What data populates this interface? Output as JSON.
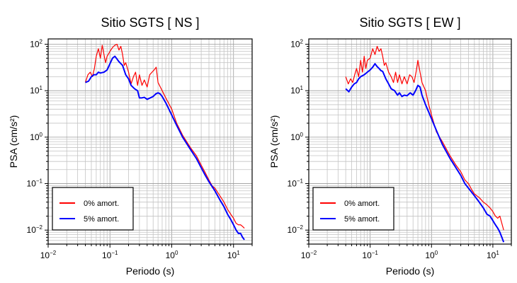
{
  "chart_data": [
    {
      "type": "line",
      "title": "Sitio SGTS [ NS ]",
      "xlabel": "Periodo (s)",
      "ylabel": "PSA (cm/s²)",
      "xscale": "log",
      "yscale": "log",
      "xlim": [
        0.01,
        20
      ],
      "ylim": [
        0.005,
        130
      ],
      "grid": true,
      "legend_position": "bottom-left",
      "x_ticks": [
        {
          "base": "10",
          "exp": "−2",
          "value": 0.01
        },
        {
          "base": "10",
          "exp": "−1",
          "value": 0.1
        },
        {
          "base": "10",
          "exp": "0",
          "value": 1
        },
        {
          "base": "10",
          "exp": "1",
          "value": 10
        }
      ],
      "y_ticks": [
        {
          "base": "10",
          "exp": "−2",
          "value": 0.01
        },
        {
          "base": "10",
          "exp": "−1",
          "value": 0.1
        },
        {
          "base": "10",
          "exp": "0",
          "value": 1
        },
        {
          "base": "10",
          "exp": "1",
          "value": 10
        },
        {
          "base": "10",
          "exp": "2",
          "value": 100
        }
      ],
      "series": [
        {
          "name": "0% amort.",
          "color": "#ff0000",
          "points": [
            [
              0.04,
              15
            ],
            [
              0.044,
              22
            ],
            [
              0.048,
              25
            ],
            [
              0.052,
              20
            ],
            [
              0.056,
              30
            ],
            [
              0.06,
              55
            ],
            [
              0.065,
              80
            ],
            [
              0.07,
              50
            ],
            [
              0.075,
              95
            ],
            [
              0.08,
              60
            ],
            [
              0.085,
              40
            ],
            [
              0.09,
              55
            ],
            [
              0.1,
              70
            ],
            [
              0.11,
              85
            ],
            [
              0.12,
              95
            ],
            [
              0.13,
              100
            ],
            [
              0.14,
              75
            ],
            [
              0.15,
              90
            ],
            [
              0.16,
              60
            ],
            [
              0.17,
              35
            ],
            [
              0.18,
              40
            ],
            [
              0.2,
              25
            ],
            [
              0.22,
              14
            ],
            [
              0.24,
              20
            ],
            [
              0.26,
              25
            ],
            [
              0.28,
              13
            ],
            [
              0.3,
              22
            ],
            [
              0.33,
              13
            ],
            [
              0.36,
              17
            ],
            [
              0.4,
              12
            ],
            [
              0.44,
              22
            ],
            [
              0.48,
              25
            ],
            [
              0.52,
              28
            ],
            [
              0.56,
              32
            ],
            [
              0.6,
              15
            ],
            [
              0.7,
              10
            ],
            [
              0.8,
              7
            ],
            [
              1,
              4
            ],
            [
              1.2,
              2
            ],
            [
              1.5,
              1.1
            ],
            [
              2,
              0.6
            ],
            [
              2.5,
              0.4
            ],
            [
              3,
              0.25
            ],
            [
              3.5,
              0.17
            ],
            [
              4,
              0.12
            ],
            [
              4.5,
              0.09
            ],
            [
              5,
              0.08
            ],
            [
              6,
              0.055
            ],
            [
              7,
              0.04
            ],
            [
              8,
              0.028
            ],
            [
              9,
              0.022
            ],
            [
              10,
              0.018
            ],
            [
              11,
              0.014
            ],
            [
              12,
              0.013
            ],
            [
              13,
              0.013
            ],
            [
              14,
              0.012
            ],
            [
              15,
              0.011
            ]
          ]
        },
        {
          "name": "5% amort.",
          "color": "#0000ff",
          "points": [
            [
              0.04,
              15
            ],
            [
              0.045,
              16
            ],
            [
              0.05,
              20
            ],
            [
              0.055,
              22
            ],
            [
              0.06,
              22
            ],
            [
              0.065,
              25
            ],
            [
              0.07,
              24
            ],
            [
              0.08,
              25
            ],
            [
              0.09,
              28
            ],
            [
              0.1,
              38
            ],
            [
              0.11,
              50
            ],
            [
              0.12,
              55
            ],
            [
              0.13,
              48
            ],
            [
              0.14,
              42
            ],
            [
              0.16,
              35
            ],
            [
              0.18,
              22
            ],
            [
              0.2,
              18
            ],
            [
              0.22,
              13
            ],
            [
              0.25,
              11
            ],
            [
              0.28,
              10
            ],
            [
              0.3,
              7
            ],
            [
              0.33,
              7
            ],
            [
              0.36,
              7.2
            ],
            [
              0.4,
              6.5
            ],
            [
              0.45,
              7
            ],
            [
              0.5,
              7.5
            ],
            [
              0.55,
              8.5
            ],
            [
              0.6,
              9
            ],
            [
              0.65,
              8.5
            ],
            [
              0.7,
              7.5
            ],
            [
              0.8,
              5.5
            ],
            [
              1,
              3
            ],
            [
              1.2,
              1.8
            ],
            [
              1.5,
              1
            ],
            [
              2,
              0.55
            ],
            [
              2.5,
              0.35
            ],
            [
              3,
              0.22
            ],
            [
              3.5,
              0.15
            ],
            [
              4,
              0.11
            ],
            [
              5,
              0.07
            ],
            [
              6,
              0.045
            ],
            [
              7,
              0.032
            ],
            [
              8,
              0.022
            ],
            [
              9,
              0.017
            ],
            [
              10,
              0.013
            ],
            [
              11,
              0.01
            ],
            [
              12,
              0.0085
            ],
            [
              13,
              0.0085
            ],
            [
              14,
              0.007
            ],
            [
              15,
              0.0062
            ]
          ]
        }
      ]
    },
    {
      "type": "line",
      "title": "Sitio SGTS [ EW ]",
      "xlabel": "Periodo (s)",
      "ylabel": "PSA (cm/s²)",
      "xscale": "log",
      "yscale": "log",
      "xlim": [
        0.01,
        20
      ],
      "ylim": [
        0.005,
        130
      ],
      "grid": true,
      "legend_position": "bottom-left",
      "x_ticks": [
        {
          "base": "10",
          "exp": "−2",
          "value": 0.01
        },
        {
          "base": "10",
          "exp": "−1",
          "value": 0.1
        },
        {
          "base": "10",
          "exp": "0",
          "value": 1
        },
        {
          "base": "10",
          "exp": "1",
          "value": 10
        }
      ],
      "y_ticks": [
        {
          "base": "10",
          "exp": "−2",
          "value": 0.01
        },
        {
          "base": "10",
          "exp": "−1",
          "value": 0.1
        },
        {
          "base": "10",
          "exp": "0",
          "value": 1
        },
        {
          "base": "10",
          "exp": "1",
          "value": 10
        },
        {
          "base": "10",
          "exp": "2",
          "value": 100
        }
      ],
      "series": [
        {
          "name": "0% amort.",
          "color": "#ff0000",
          "points": [
            [
              0.04,
              20
            ],
            [
              0.044,
              14
            ],
            [
              0.048,
              18
            ],
            [
              0.052,
              15
            ],
            [
              0.056,
              22
            ],
            [
              0.06,
              30
            ],
            [
              0.065,
              20
            ],
            [
              0.07,
              45
            ],
            [
              0.075,
              25
            ],
            [
              0.08,
              55
            ],
            [
              0.085,
              30
            ],
            [
              0.09,
              45
            ],
            [
              0.1,
              50
            ],
            [
              0.11,
              80
            ],
            [
              0.12,
              60
            ],
            [
              0.13,
              90
            ],
            [
              0.14,
              70
            ],
            [
              0.15,
              80
            ],
            [
              0.16,
              55
            ],
            [
              0.17,
              35
            ],
            [
              0.18,
              40
            ],
            [
              0.2,
              25
            ],
            [
              0.22,
              20
            ],
            [
              0.24,
              15
            ],
            [
              0.26,
              25
            ],
            [
              0.28,
              15
            ],
            [
              0.3,
              22
            ],
            [
              0.33,
              14
            ],
            [
              0.36,
              20
            ],
            [
              0.4,
              14
            ],
            [
              0.44,
              22
            ],
            [
              0.48,
              20
            ],
            [
              0.52,
              15
            ],
            [
              0.56,
              25
            ],
            [
              0.6,
              45
            ],
            [
              0.65,
              25
            ],
            [
              0.7,
              15
            ],
            [
              0.8,
              10
            ],
            [
              0.9,
              5
            ],
            [
              1,
              3
            ],
            [
              1.2,
              1.3
            ],
            [
              1.5,
              0.8
            ],
            [
              2,
              0.4
            ],
            [
              2.5,
              0.25
            ],
            [
              3,
              0.18
            ],
            [
              3.5,
              0.12
            ],
            [
              4,
              0.1
            ],
            [
              4.5,
              0.075
            ],
            [
              5,
              0.06
            ],
            [
              6,
              0.05
            ],
            [
              7,
              0.04
            ],
            [
              8,
              0.035
            ],
            [
              9,
              0.03
            ],
            [
              10,
              0.025
            ],
            [
              11,
              0.02
            ],
            [
              12,
              0.018
            ],
            [
              13,
              0.02
            ],
            [
              14,
              0.014
            ],
            [
              15,
              0.01
            ]
          ]
        },
        {
          "name": "5% amort.",
          "color": "#0000ff",
          "points": [
            [
              0.04,
              11
            ],
            [
              0.045,
              9.5
            ],
            [
              0.05,
              12
            ],
            [
              0.055,
              14
            ],
            [
              0.06,
              15
            ],
            [
              0.065,
              18
            ],
            [
              0.07,
              20
            ],
            [
              0.08,
              22
            ],
            [
              0.09,
              25
            ],
            [
              0.1,
              28
            ],
            [
              0.11,
              32
            ],
            [
              0.12,
              38
            ],
            [
              0.13,
              33
            ],
            [
              0.14,
              30
            ],
            [
              0.15,
              27
            ],
            [
              0.16,
              26
            ],
            [
              0.18,
              18
            ],
            [
              0.2,
              14
            ],
            [
              0.22,
              11
            ],
            [
              0.25,
              10
            ],
            [
              0.28,
              8
            ],
            [
              0.3,
              9
            ],
            [
              0.33,
              7.5
            ],
            [
              0.36,
              8
            ],
            [
              0.4,
              7.8
            ],
            [
              0.45,
              9
            ],
            [
              0.5,
              8
            ],
            [
              0.55,
              10
            ],
            [
              0.6,
              13
            ],
            [
              0.65,
              12
            ],
            [
              0.7,
              8
            ],
            [
              0.8,
              5
            ],
            [
              1,
              2.5
            ],
            [
              1.2,
              1.4
            ],
            [
              1.5,
              0.7
            ],
            [
              2,
              0.35
            ],
            [
              2.5,
              0.22
            ],
            [
              3,
              0.15
            ],
            [
              3.5,
              0.1
            ],
            [
              4,
              0.08
            ],
            [
              5,
              0.055
            ],
            [
              6,
              0.04
            ],
            [
              7,
              0.03
            ],
            [
              8,
              0.022
            ],
            [
              9,
              0.02
            ],
            [
              10,
              0.016
            ],
            [
              11,
              0.013
            ],
            [
              12,
              0.011
            ],
            [
              13,
              0.009
            ],
            [
              14,
              0.007
            ],
            [
              15,
              0.0055
            ]
          ]
        }
      ]
    }
  ]
}
